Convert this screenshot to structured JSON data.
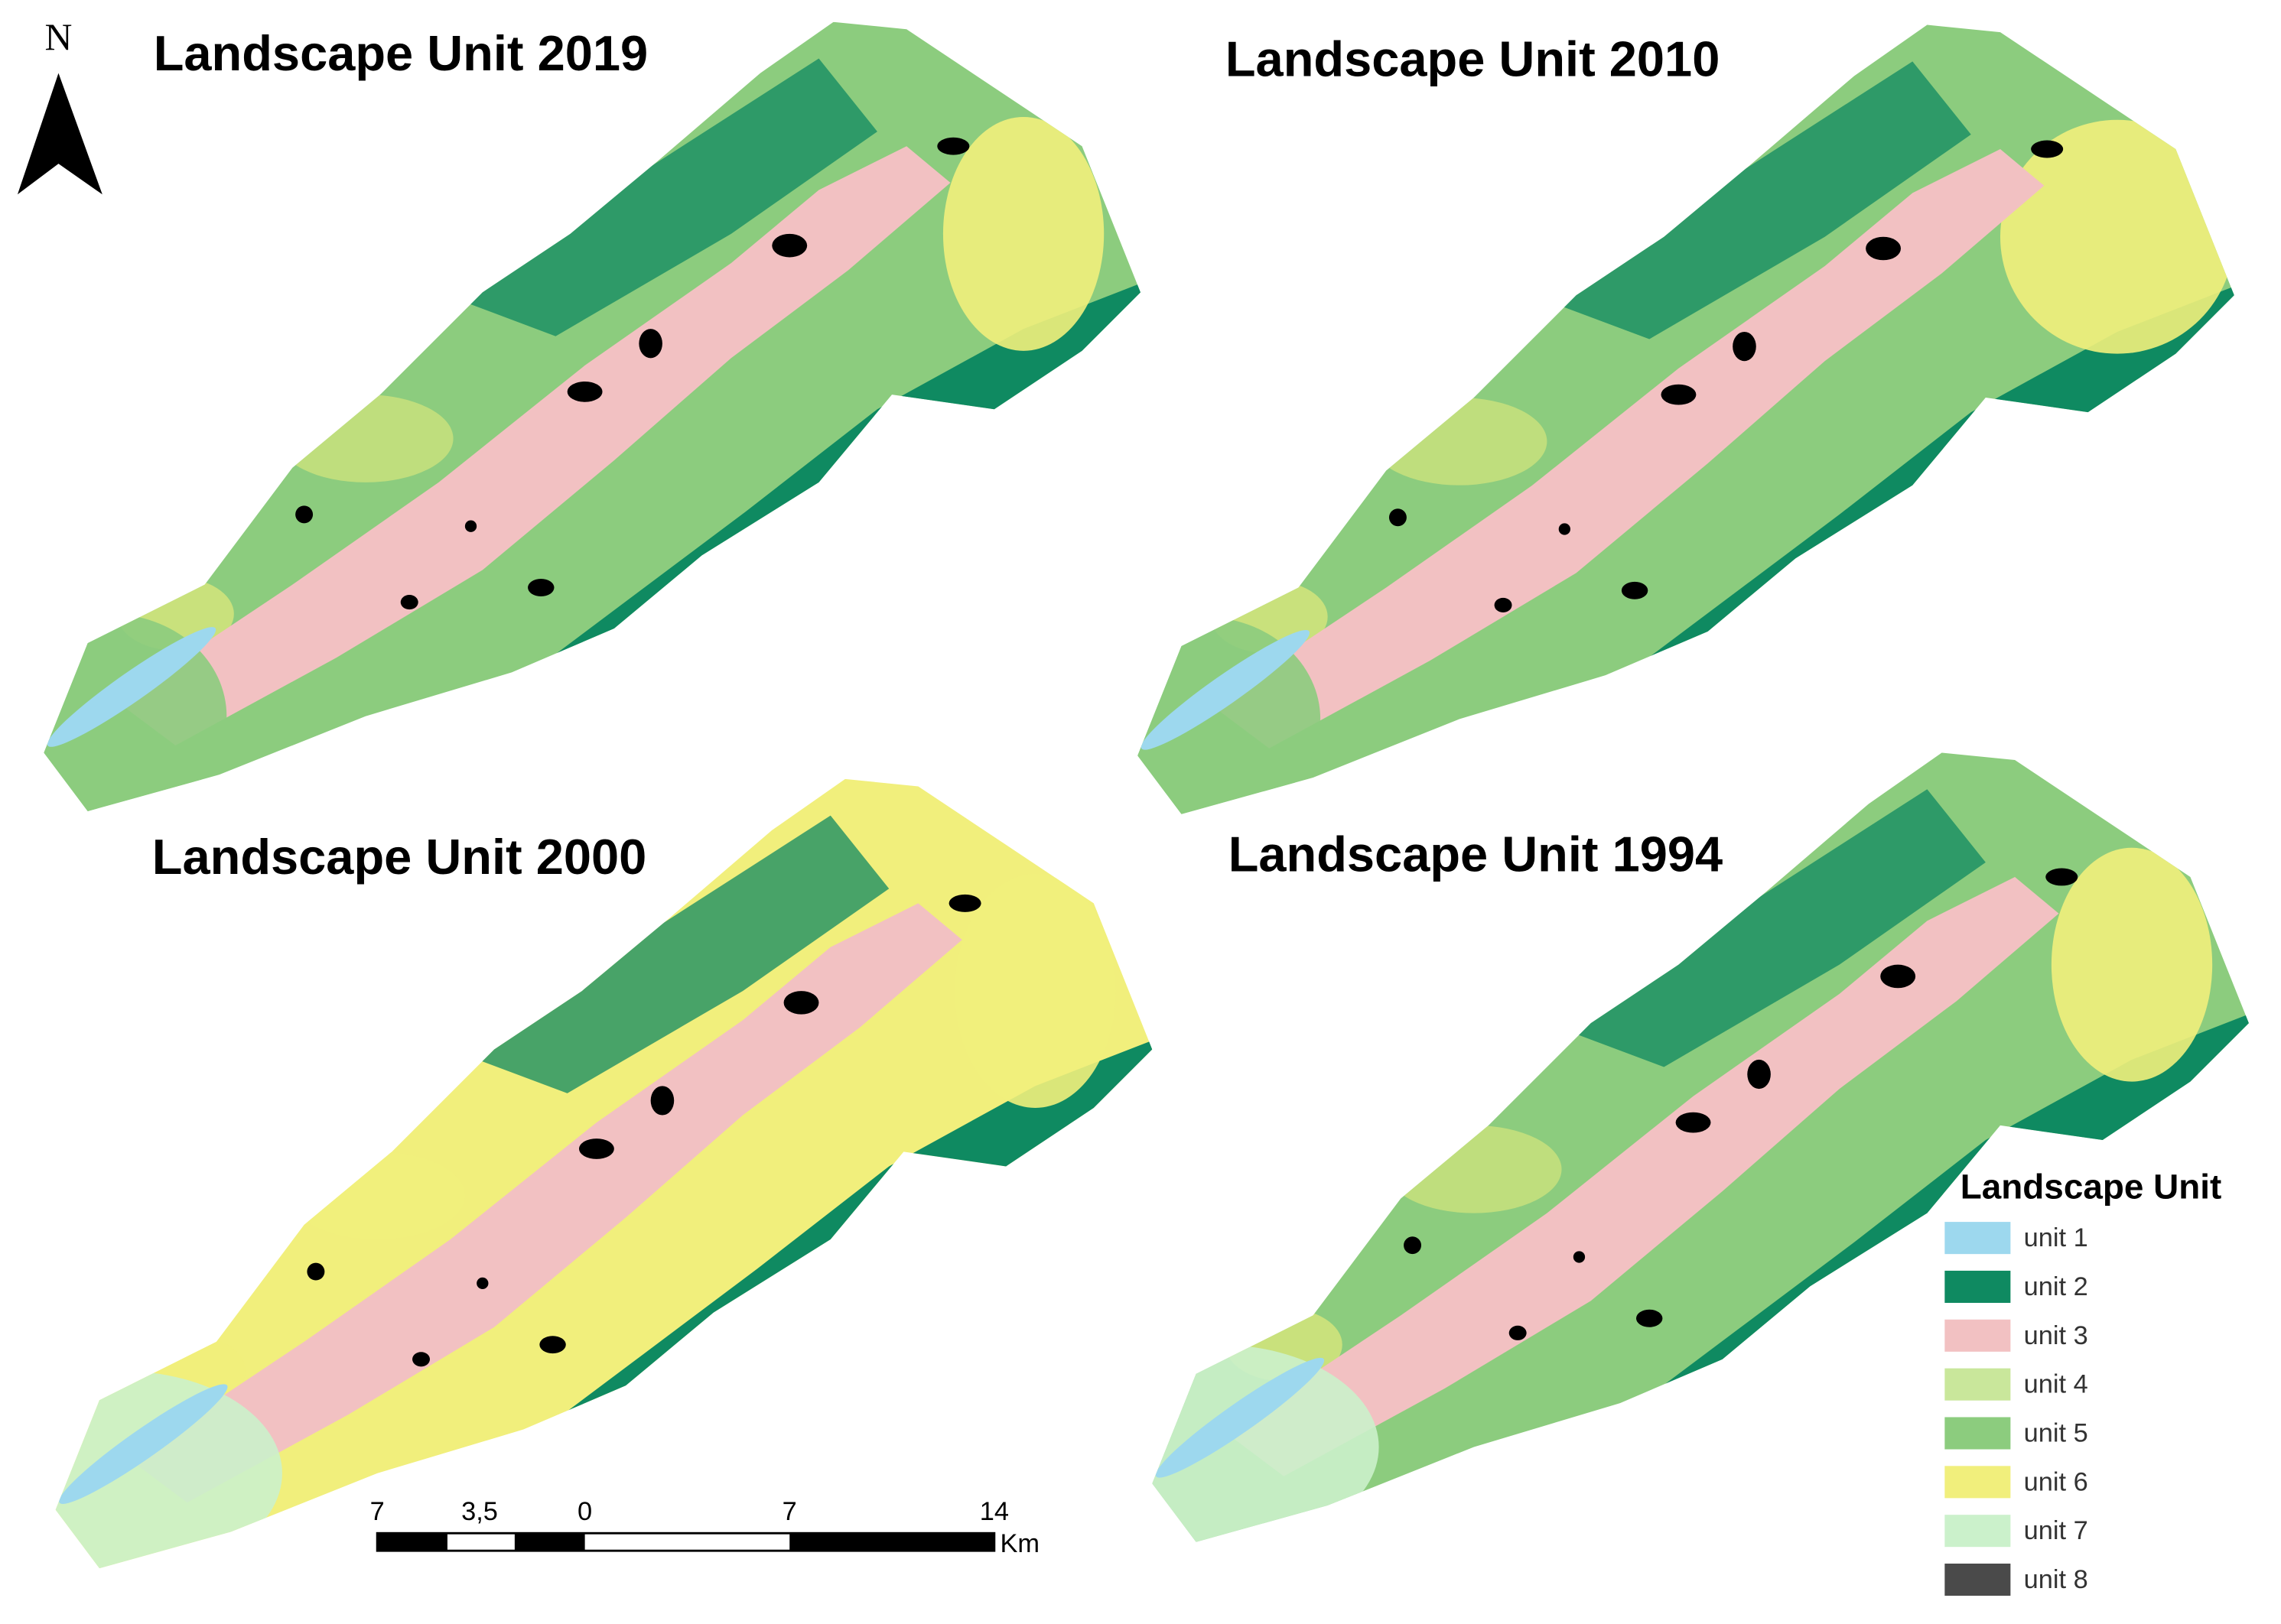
{
  "north": "N",
  "maps": [
    {
      "title": "Landscape Unit 2019"
    },
    {
      "title": "Landscape Unit 2010"
    },
    {
      "title": "Landscape Unit 2000"
    },
    {
      "title": "Landscape Unit 1994"
    }
  ],
  "scale_bar": {
    "labels": [
      "7",
      "3,5",
      "0",
      "7",
      "14"
    ],
    "unit": "Km"
  },
  "legend": {
    "title": "Landscape Unit",
    "items": [
      {
        "label": "unit 1",
        "color": "#9dd8ee"
      },
      {
        "label": "unit 2",
        "color": "#0f8a61"
      },
      {
        "label": "unit 3",
        "color": "#f2c1c2"
      },
      {
        "label": "unit 4",
        "color": "#c9e79b"
      },
      {
        "label": "unit 5",
        "color": "#8ccc7e"
      },
      {
        "label": "unit 6",
        "color": "#f1ef7c"
      },
      {
        "label": "unit 7",
        "color": "#cbf1cb"
      },
      {
        "label": "unit 8",
        "color": "#4a4a4a"
      }
    ]
  }
}
